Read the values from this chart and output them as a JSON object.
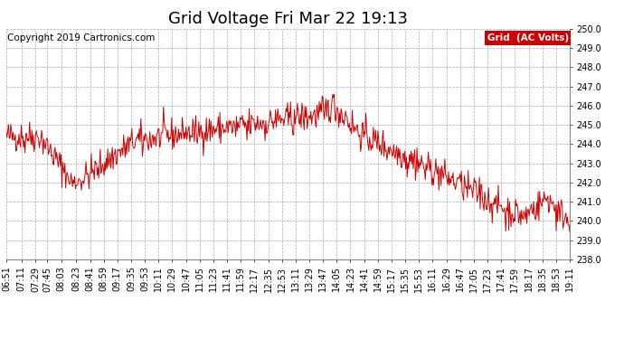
{
  "title": "Grid Voltage Fri Mar 22 19:13",
  "copyright": "Copyright 2019 Cartronics.com",
  "legend_label": "Grid  (AC Volts)",
  "legend_bg": "#cc0000",
  "legend_text_color": "#ffffff",
  "line_color": "#cc0000",
  "background_color": "#ffffff",
  "plot_bg_color": "#ffffff",
  "grid_color": "#aaaaaa",
  "ylim": [
    238.0,
    250.0
  ],
  "yticks": [
    238.0,
    239.0,
    240.0,
    241.0,
    242.0,
    243.0,
    244.0,
    245.0,
    246.0,
    247.0,
    248.0,
    249.0,
    250.0
  ],
  "xtick_labels": [
    "06:51",
    "07:11",
    "07:29",
    "07:45",
    "08:03",
    "08:23",
    "08:41",
    "08:59",
    "09:17",
    "09:35",
    "09:53",
    "10:11",
    "10:29",
    "10:47",
    "11:05",
    "11:23",
    "11:41",
    "11:59",
    "12:17",
    "12:35",
    "12:53",
    "13:11",
    "13:29",
    "13:47",
    "14:05",
    "14:23",
    "14:41",
    "14:59",
    "15:17",
    "15:35",
    "15:53",
    "16:11",
    "16:29",
    "16:47",
    "17:05",
    "17:23",
    "17:41",
    "17:59",
    "18:17",
    "18:35",
    "18:53",
    "19:11"
  ],
  "title_fontsize": 13,
  "tick_fontsize": 7,
  "copyright_fontsize": 7.5,
  "line_width": 0.7
}
